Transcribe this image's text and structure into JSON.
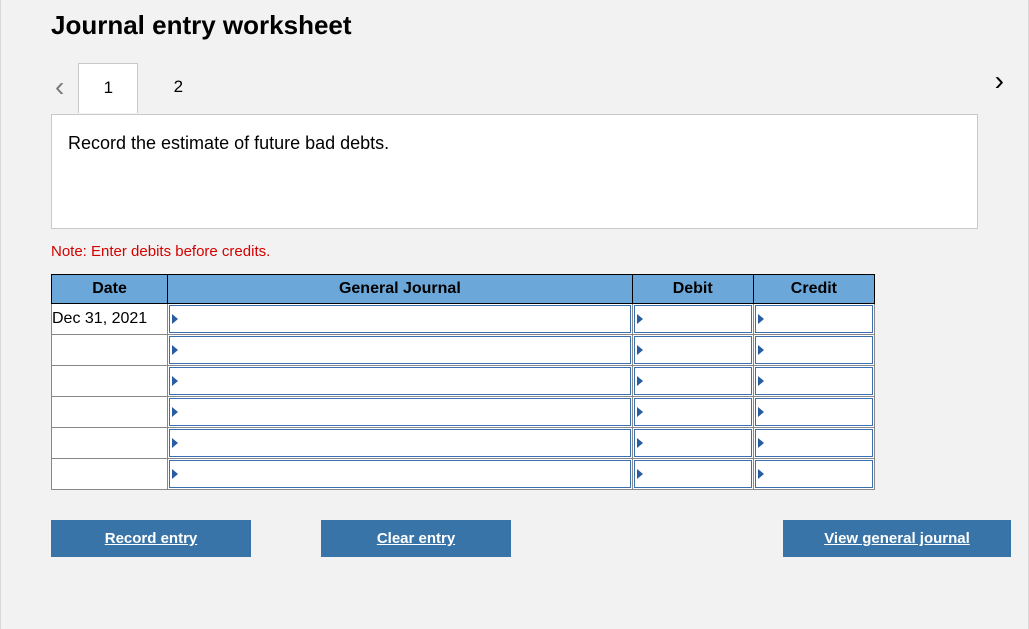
{
  "title": "Journal entry worksheet",
  "nav": {
    "prev_icon": "‹",
    "next_icon": "›"
  },
  "tabs": [
    {
      "label": "1",
      "active": true
    },
    {
      "label": "2",
      "active": false
    }
  ],
  "instruction": "Record the estimate of future bad debts.",
  "note": "Note: Enter debits before credits.",
  "table": {
    "headers": {
      "date": "Date",
      "general_journal": "General Journal",
      "debit": "Debit",
      "credit": "Credit"
    },
    "header_bg": "#6ca7d9",
    "dropdown_border": "#3b6fb0",
    "dropdown_triangle": "#2a5ca0",
    "rows": [
      {
        "date": "Dec 31, 2021",
        "general_journal": "",
        "debit": "",
        "credit": ""
      },
      {
        "date": "",
        "general_journal": "",
        "debit": "",
        "credit": ""
      },
      {
        "date": "",
        "general_journal": "",
        "debit": "",
        "credit": ""
      },
      {
        "date": "",
        "general_journal": "",
        "debit": "",
        "credit": ""
      },
      {
        "date": "",
        "general_journal": "",
        "debit": "",
        "credit": ""
      },
      {
        "date": "",
        "general_journal": "",
        "debit": "",
        "credit": ""
      }
    ]
  },
  "buttons": {
    "record": "Record entry",
    "clear": "Clear entry",
    "view": "View general journal",
    "bg": "#3874a8"
  },
  "colors": {
    "page_bg": "#f2f2f2",
    "panel_bg": "#ffffff",
    "note_color": "#d40000"
  }
}
